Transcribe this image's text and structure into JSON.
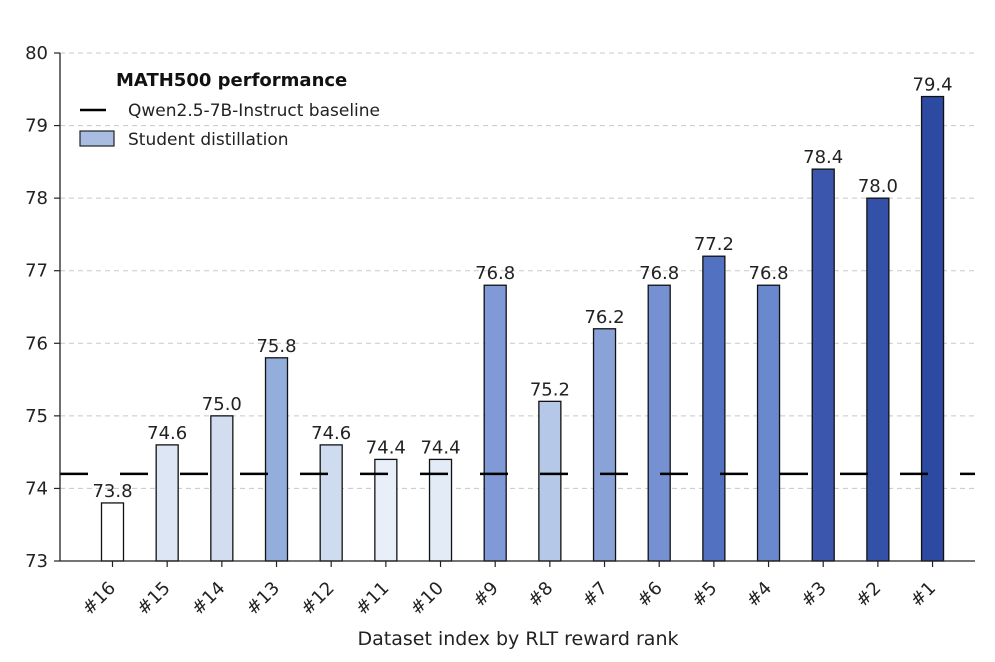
{
  "chart_data": {
    "type": "bar",
    "title": "",
    "xlabel": "Dataset index by RLT reward rank",
    "ylabel": "",
    "ylim": [
      73,
      80
    ],
    "yticks": [
      73,
      74,
      75,
      76,
      77,
      78,
      79,
      80
    ],
    "grid": "horizontal dashed",
    "categories": [
      "#16",
      "#15",
      "#14",
      "#13",
      "#12",
      "#11",
      "#10",
      "#9",
      "#8",
      "#7",
      "#6",
      "#5",
      "#4",
      "#3",
      "#2",
      "#1"
    ],
    "values": [
      73.8,
      74.6,
      75.0,
      75.8,
      74.6,
      74.4,
      74.4,
      76.8,
      75.2,
      76.2,
      76.8,
      77.2,
      76.8,
      78.4,
      78.0,
      79.4
    ],
    "data_labels": [
      "73.8",
      "74.6",
      "75.0",
      "75.8",
      "74.6",
      "74.4",
      "74.4",
      "76.8",
      "75.2",
      "76.2",
      "76.8",
      "77.2",
      "76.8",
      "78.4",
      "78.0",
      "79.4"
    ],
    "bar_colors": [
      "#ffffff",
      "#dce6f4",
      "#d2ddf0",
      "#94aedb",
      "#cfdcf0",
      "#e9eff8",
      "#e2ebf6",
      "#7f9ad6",
      "#b5c8e8",
      "#89a3d9",
      "#7591d2",
      "#5371c1",
      "#6a88cd",
      "#3a56ad",
      "#3451a8",
      "#2d4aa2"
    ],
    "baseline": {
      "value": 74.2,
      "label": "Qwen2.5-7B-Instruct baseline",
      "color": "#000000"
    },
    "legend": {
      "title": "MATH500 performance",
      "position": "top-left",
      "entries": [
        {
          "label": "Qwen2.5-7B-Instruct baseline",
          "kind": "dashed-line"
        },
        {
          "label": "Student distillation",
          "kind": "bar",
          "color": "#a9bde3"
        }
      ]
    }
  }
}
